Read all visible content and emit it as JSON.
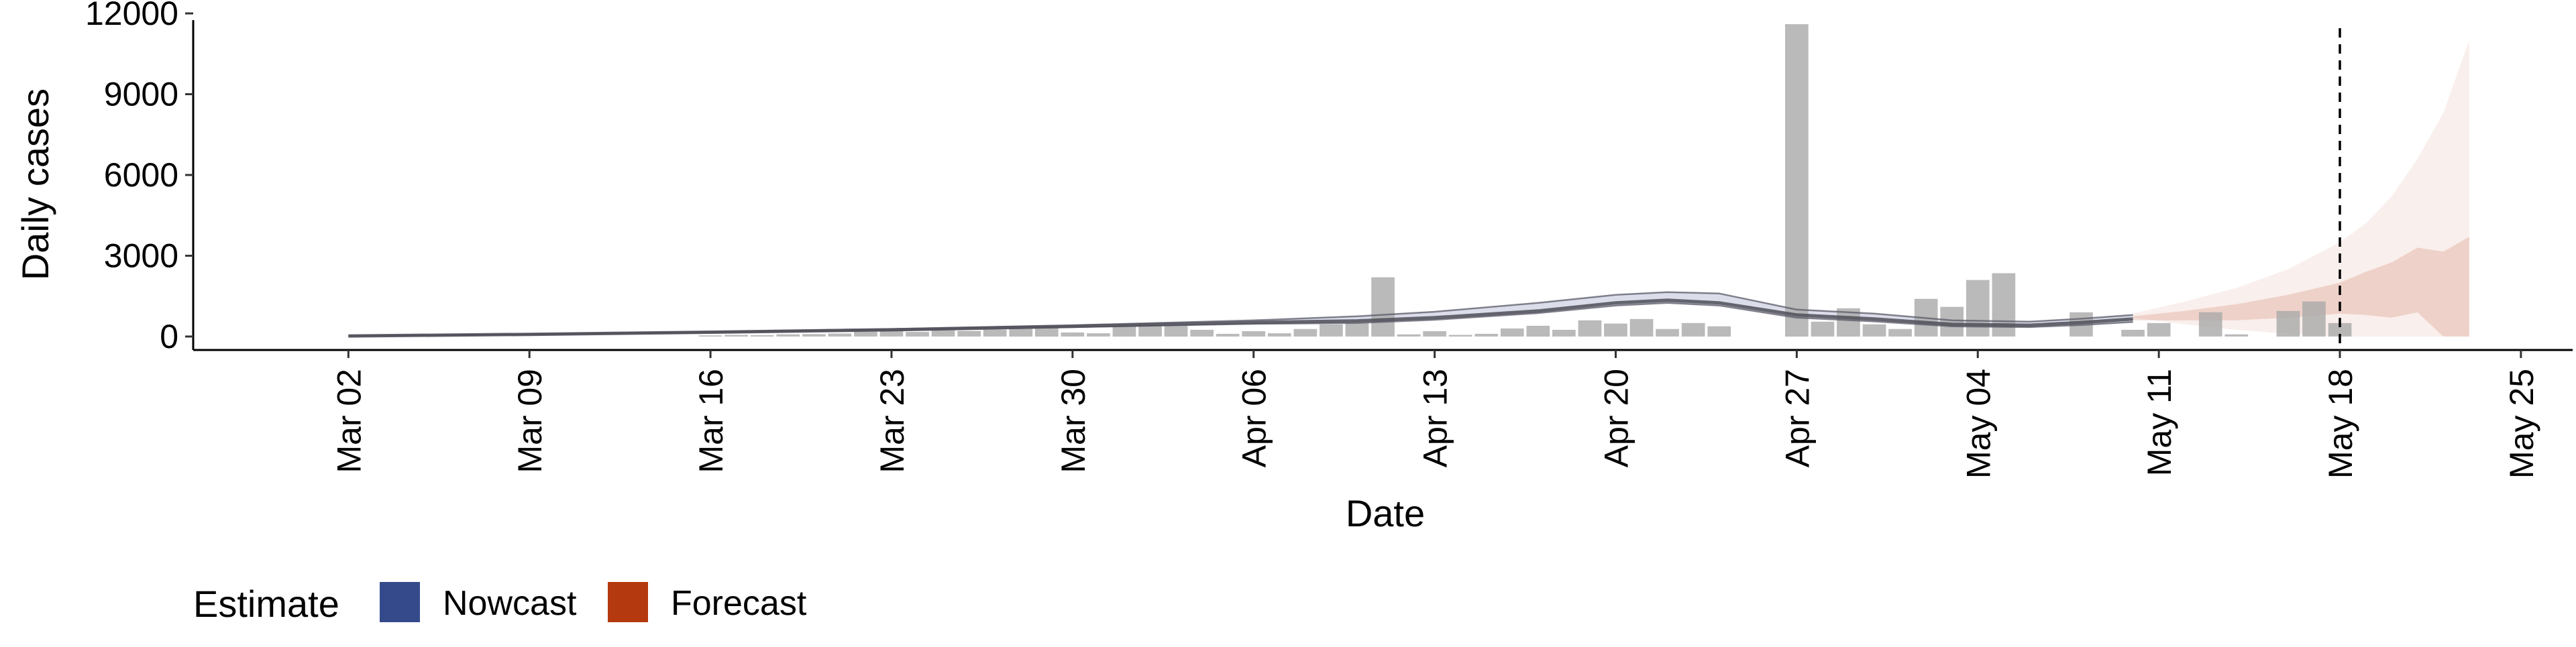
{
  "chart_data": {
    "type": "bar",
    "xlabel": "Date",
    "ylabel": "Daily cases",
    "ylim": [
      -500,
      12000
    ],
    "y_ticks": [
      0,
      3000,
      6000,
      9000,
      12000
    ],
    "y_tick_labels": [
      "0",
      "3000",
      "6000",
      "9000",
      "12000"
    ],
    "xlim": [
      "2020-02-25",
      "2020-05-27"
    ],
    "x_ticks": [
      "2020-03-02",
      "2020-03-09",
      "2020-03-16",
      "2020-03-23",
      "2020-03-30",
      "2020-04-06",
      "2020-04-13",
      "2020-04-20",
      "2020-04-27",
      "2020-05-04",
      "2020-05-11",
      "2020-05-18",
      "2020-05-25"
    ],
    "x_tick_labels": [
      "Mar 02",
      "Mar 09",
      "Mar 16",
      "Mar 23",
      "Mar 30",
      "Apr 06",
      "Apr 13",
      "Apr 20",
      "Apr 27",
      "May 04",
      "May 11",
      "May 18",
      "May 25"
    ],
    "grid": false,
    "vline_date": "2020-05-18",
    "reported_cases": [
      {
        "date": "2020-03-16",
        "value": 40
      },
      {
        "date": "2020-03-17",
        "value": 60
      },
      {
        "date": "2020-03-18",
        "value": 50
      },
      {
        "date": "2020-03-19",
        "value": 80
      },
      {
        "date": "2020-03-20",
        "value": 90
      },
      {
        "date": "2020-03-21",
        "value": 110
      },
      {
        "date": "2020-03-22",
        "value": 180
      },
      {
        "date": "2020-03-23",
        "value": 200
      },
      {
        "date": "2020-03-24",
        "value": 170
      },
      {
        "date": "2020-03-25",
        "value": 230
      },
      {
        "date": "2020-03-26",
        "value": 210
      },
      {
        "date": "2020-03-27",
        "value": 260
      },
      {
        "date": "2020-03-28",
        "value": 320
      },
      {
        "date": "2020-03-29",
        "value": 360
      },
      {
        "date": "2020-03-30",
        "value": 150
      },
      {
        "date": "2020-03-31",
        "value": 120
      },
      {
        "date": "2020-04-01",
        "value": 380
      },
      {
        "date": "2020-04-02",
        "value": 450
      },
      {
        "date": "2020-04-03",
        "value": 400
      },
      {
        "date": "2020-04-04",
        "value": 250
      },
      {
        "date": "2020-04-05",
        "value": 100
      },
      {
        "date": "2020-04-06",
        "value": 200
      },
      {
        "date": "2020-04-07",
        "value": 120
      },
      {
        "date": "2020-04-08",
        "value": 280
      },
      {
        "date": "2020-04-09",
        "value": 450
      },
      {
        "date": "2020-04-10",
        "value": 500
      },
      {
        "date": "2020-04-11",
        "value": 2200
      },
      {
        "date": "2020-04-12",
        "value": 80
      },
      {
        "date": "2020-04-13",
        "value": 200
      },
      {
        "date": "2020-04-14",
        "value": 60
      },
      {
        "date": "2020-04-15",
        "value": 100
      },
      {
        "date": "2020-04-16",
        "value": 300
      },
      {
        "date": "2020-04-17",
        "value": 400
      },
      {
        "date": "2020-04-18",
        "value": 250
      },
      {
        "date": "2020-04-19",
        "value": 600
      },
      {
        "date": "2020-04-20",
        "value": 480
      },
      {
        "date": "2020-04-21",
        "value": 650
      },
      {
        "date": "2020-04-22",
        "value": 280
      },
      {
        "date": "2020-04-23",
        "value": 500
      },
      {
        "date": "2020-04-24",
        "value": 380
      },
      {
        "date": "2020-04-27",
        "value": 11600
      },
      {
        "date": "2020-04-28",
        "value": 550
      },
      {
        "date": "2020-04-29",
        "value": 1050
      },
      {
        "date": "2020-04-30",
        "value": 450
      },
      {
        "date": "2020-05-01",
        "value": 280
      },
      {
        "date": "2020-05-02",
        "value": 1400
      },
      {
        "date": "2020-05-03",
        "value": 1100
      },
      {
        "date": "2020-05-04",
        "value": 2100
      },
      {
        "date": "2020-05-05",
        "value": 2350
      },
      {
        "date": "2020-05-08",
        "value": 900
      },
      {
        "date": "2020-05-10",
        "value": 250
      },
      {
        "date": "2020-05-11",
        "value": 500
      },
      {
        "date": "2020-05-13",
        "value": 900
      },
      {
        "date": "2020-05-14",
        "value": 80
      },
      {
        "date": "2020-05-16",
        "value": 950
      },
      {
        "date": "2020-05-17",
        "value": 1300
      },
      {
        "date": "2020-05-18",
        "value": 500
      }
    ],
    "nowcast": {
      "name": "Nowcast",
      "color": "#354A8A",
      "median": [
        {
          "date": "2020-03-02",
          "value": 20
        },
        {
          "date": "2020-03-09",
          "value": 80
        },
        {
          "date": "2020-03-16",
          "value": 160
        },
        {
          "date": "2020-03-23",
          "value": 250
        },
        {
          "date": "2020-03-30",
          "value": 380
        },
        {
          "date": "2020-04-06",
          "value": 520
        },
        {
          "date": "2020-04-10",
          "value": 580
        },
        {
          "date": "2020-04-13",
          "value": 700
        },
        {
          "date": "2020-04-17",
          "value": 950
        },
        {
          "date": "2020-04-20",
          "value": 1250
        },
        {
          "date": "2020-04-22",
          "value": 1350
        },
        {
          "date": "2020-04-24",
          "value": 1250
        },
        {
          "date": "2020-04-27",
          "value": 800
        },
        {
          "date": "2020-04-30",
          "value": 650
        },
        {
          "date": "2020-05-03",
          "value": 450
        },
        {
          "date": "2020-05-06",
          "value": 420
        },
        {
          "date": "2020-05-08",
          "value": 520
        },
        {
          "date": "2020-05-10",
          "value": 650
        }
      ],
      "lower": [
        {
          "date": "2020-03-02",
          "value": 15
        },
        {
          "date": "2020-03-09",
          "value": 70
        },
        {
          "date": "2020-03-16",
          "value": 145
        },
        {
          "date": "2020-03-23",
          "value": 230
        },
        {
          "date": "2020-03-30",
          "value": 350
        },
        {
          "date": "2020-04-06",
          "value": 470
        },
        {
          "date": "2020-04-10",
          "value": 500
        },
        {
          "date": "2020-04-13",
          "value": 620
        },
        {
          "date": "2020-04-17",
          "value": 870
        },
        {
          "date": "2020-04-20",
          "value": 1150
        },
        {
          "date": "2020-04-22",
          "value": 1250
        },
        {
          "date": "2020-04-24",
          "value": 1150
        },
        {
          "date": "2020-04-27",
          "value": 700
        },
        {
          "date": "2020-04-30",
          "value": 560
        },
        {
          "date": "2020-05-03",
          "value": 380
        },
        {
          "date": "2020-05-06",
          "value": 350
        },
        {
          "date": "2020-05-08",
          "value": 430
        },
        {
          "date": "2020-05-10",
          "value": 540
        }
      ],
      "upper": [
        {
          "date": "2020-03-02",
          "value": 25
        },
        {
          "date": "2020-03-09",
          "value": 90
        },
        {
          "date": "2020-03-16",
          "value": 180
        },
        {
          "date": "2020-03-23",
          "value": 280
        },
        {
          "date": "2020-03-30",
          "value": 420
        },
        {
          "date": "2020-04-06",
          "value": 600
        },
        {
          "date": "2020-04-10",
          "value": 750
        },
        {
          "date": "2020-04-13",
          "value": 920
        },
        {
          "date": "2020-04-17",
          "value": 1250
        },
        {
          "date": "2020-04-20",
          "value": 1550
        },
        {
          "date": "2020-04-22",
          "value": 1650
        },
        {
          "date": "2020-04-24",
          "value": 1600
        },
        {
          "date": "2020-04-27",
          "value": 1000
        },
        {
          "date": "2020-04-30",
          "value": 850
        },
        {
          "date": "2020-05-03",
          "value": 600
        },
        {
          "date": "2020-05-06",
          "value": 550
        },
        {
          "date": "2020-05-08",
          "value": 660
        },
        {
          "date": "2020-05-10",
          "value": 800
        }
      ]
    },
    "forecast": {
      "name": "Forecast",
      "color": "#B5390F",
      "median": [
        {
          "date": "2020-05-10",
          "value": 750
        },
        {
          "date": "2020-05-12",
          "value": 950
        },
        {
          "date": "2020-05-14",
          "value": 1200
        },
        {
          "date": "2020-05-16",
          "value": 1550
        },
        {
          "date": "2020-05-18",
          "value": 2000
        },
        {
          "date": "2020-05-19",
          "value": 2400
        },
        {
          "date": "2020-05-20",
          "value": 2750
        },
        {
          "date": "2020-05-21",
          "value": 3300
        },
        {
          "date": "2020-05-22",
          "value": 3150
        },
        {
          "date": "2020-05-23",
          "value": 3700
        }
      ],
      "inner_lower": [
        {
          "date": "2020-05-10",
          "value": 600
        },
        {
          "date": "2020-05-12",
          "value": 600
        },
        {
          "date": "2020-05-14",
          "value": 600
        },
        {
          "date": "2020-05-16",
          "value": 700
        },
        {
          "date": "2020-05-18",
          "value": 850
        },
        {
          "date": "2020-05-19",
          "value": 800
        },
        {
          "date": "2020-05-20",
          "value": 700
        },
        {
          "date": "2020-05-21",
          "value": 900
        },
        {
          "date": "2020-05-22",
          "value": 0
        },
        {
          "date": "2020-05-23",
          "value": 0
        }
      ],
      "inner_upper": [
        {
          "date": "2020-05-10",
          "value": 750
        },
        {
          "date": "2020-05-12",
          "value": 950
        },
        {
          "date": "2020-05-14",
          "value": 1200
        },
        {
          "date": "2020-05-16",
          "value": 1550
        },
        {
          "date": "2020-05-18",
          "value": 2000
        },
        {
          "date": "2020-05-19",
          "value": 2400
        },
        {
          "date": "2020-05-20",
          "value": 2750
        },
        {
          "date": "2020-05-21",
          "value": 3300
        },
        {
          "date": "2020-05-22",
          "value": 3150
        },
        {
          "date": "2020-05-23",
          "value": 3700
        }
      ],
      "outer_lower": [
        {
          "date": "2020-05-10",
          "value": 700
        },
        {
          "date": "2020-05-12",
          "value": 450
        },
        {
          "date": "2020-05-14",
          "value": 250
        },
        {
          "date": "2020-05-16",
          "value": 100
        },
        {
          "date": "2020-05-18",
          "value": 0
        },
        {
          "date": "2020-05-23",
          "value": 0
        }
      ],
      "outer_upper": [
        {
          "date": "2020-05-10",
          "value": 850
        },
        {
          "date": "2020-05-12",
          "value": 1300
        },
        {
          "date": "2020-05-14",
          "value": 1800
        },
        {
          "date": "2020-05-16",
          "value": 2500
        },
        {
          "date": "2020-05-18",
          "value": 3500
        },
        {
          "date": "2020-05-19",
          "value": 4200
        },
        {
          "date": "2020-05-20",
          "value": 5200
        },
        {
          "date": "2020-05-21",
          "value": 6600
        },
        {
          "date": "2020-05-22",
          "value": 8300
        },
        {
          "date": "2020-05-23",
          "value": 11000
        }
      ]
    },
    "legend": {
      "title": "Estimate",
      "placement": "bottom",
      "items": [
        {
          "label": "Nowcast",
          "color": "#354A8A"
        },
        {
          "label": "Forecast",
          "color": "#B5390F"
        }
      ]
    }
  }
}
